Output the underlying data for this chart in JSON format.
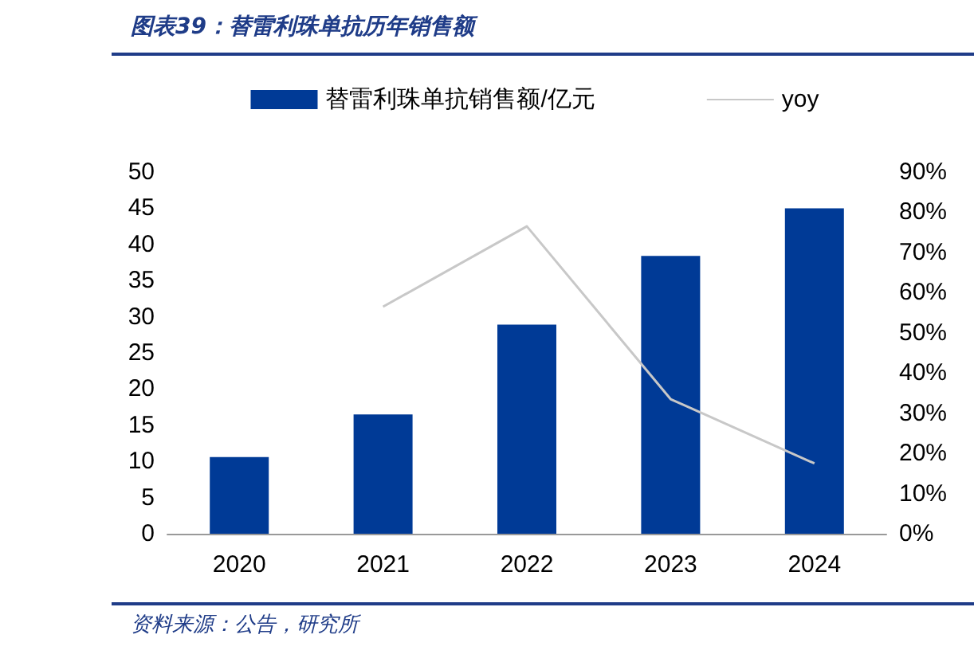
{
  "chart_data": {
    "type": "bar",
    "title": "图表39：替雷利珠单抗历年销售额",
    "categories": [
      "2020",
      "2021",
      "2022",
      "2023",
      "2024"
    ],
    "series": [
      {
        "name": "替雷利珠单抗销售额/亿元",
        "color": "#003a96",
        "values": [
          10.6,
          16.5,
          28.9,
          38.4,
          45
        ]
      },
      {
        "name": "yoy",
        "type": "line",
        "axis": "y2",
        "color": "#c8c8c8",
        "values": [
          null,
          56.5,
          76.5,
          33.5,
          17.5
        ]
      }
    ],
    "ylim": [
      0,
      50
    ],
    "yticks": [
      0,
      5,
      10,
      15,
      20,
      25,
      30,
      35,
      40,
      45,
      50
    ],
    "y2lim": [
      0,
      90
    ],
    "y2ticks": [
      {
        "value": 0,
        "label": "0%"
      },
      {
        "value": 10,
        "label": "10%"
      },
      {
        "value": 20,
        "label": "20%"
      },
      {
        "value": 30,
        "label": "30%"
      },
      {
        "value": 40,
        "label": "40%"
      },
      {
        "value": 50,
        "label": "50%"
      },
      {
        "value": 60,
        "label": "60%"
      },
      {
        "value": 70,
        "label": "70%"
      },
      {
        "value": 80,
        "label": "80%"
      },
      {
        "value": 90,
        "label": "90%"
      }
    ],
    "grid": false,
    "legend": "top",
    "marker": "none",
    "annotations": [
      "资料来源：公告，研究所"
    ]
  }
}
